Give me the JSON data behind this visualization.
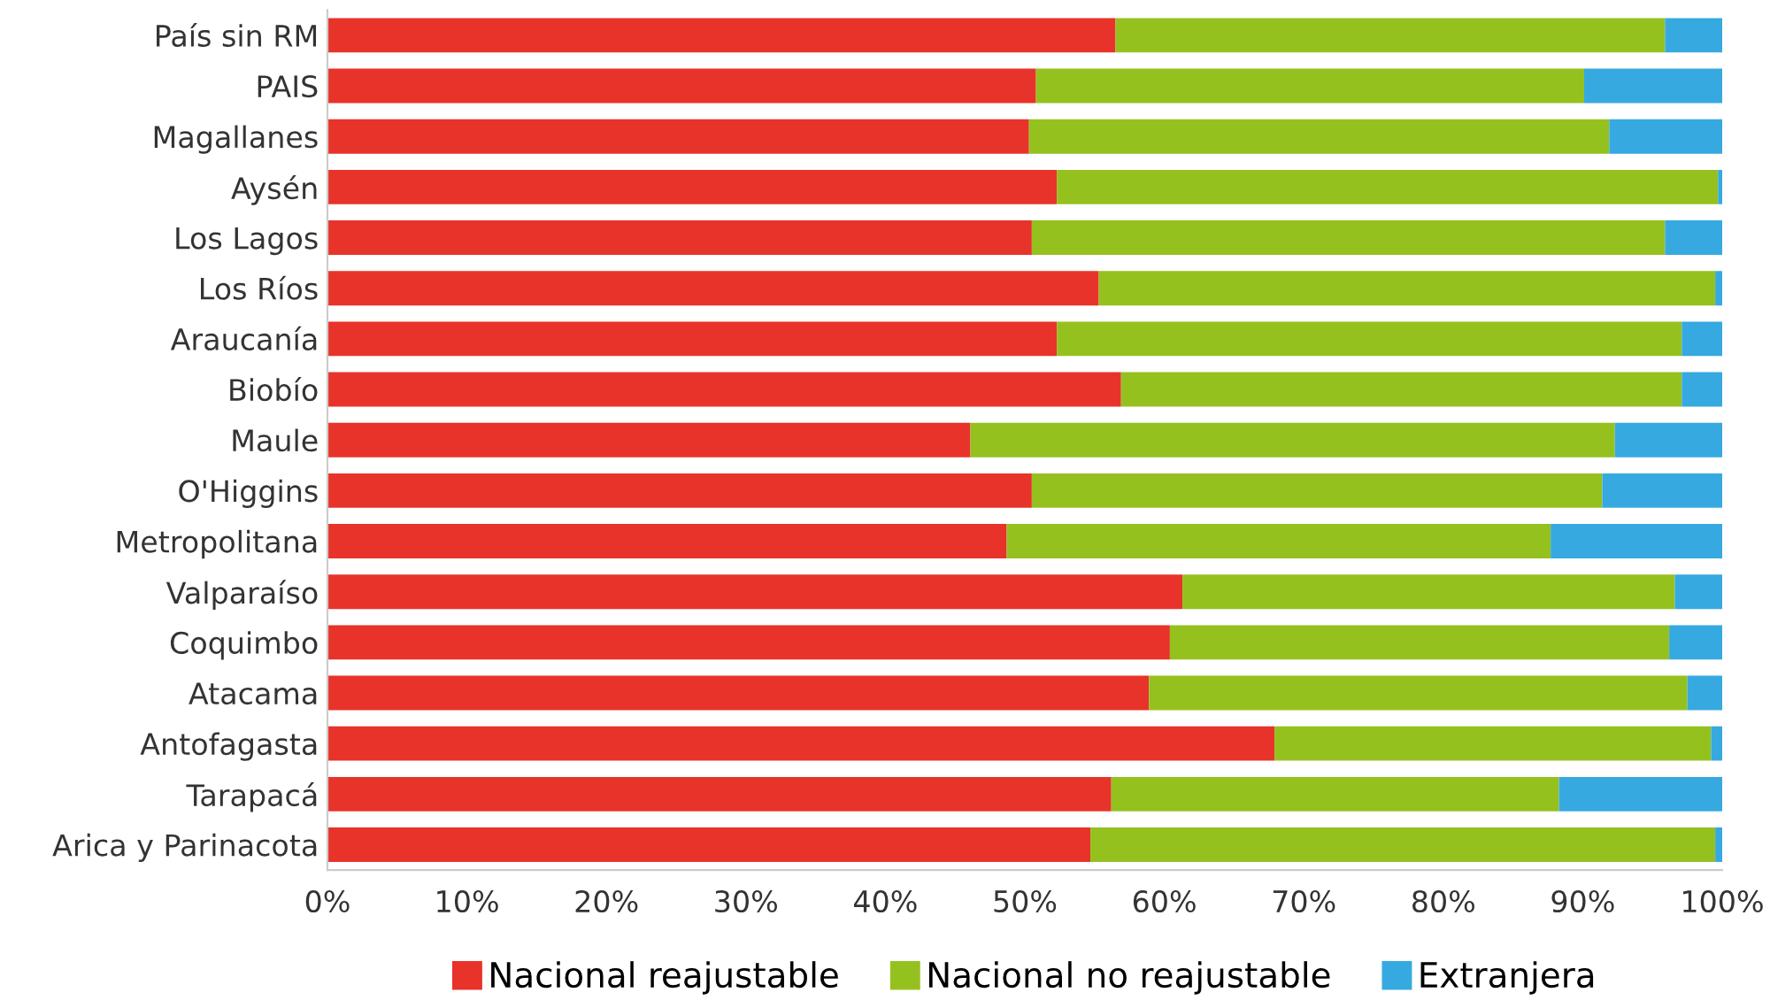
{
  "chart_data": {
    "type": "bar",
    "orientation": "horizontal",
    "stacked": true,
    "categories": [
      "País sin RM",
      "PAIS",
      "Magallanes",
      "Aysén",
      "Los Lagos",
      "Los Ríos",
      "Araucanía",
      "Biobío",
      "Maule",
      "O'Higgins",
      "Metropolitana",
      "Valparaíso",
      "Coquimbo",
      "Atacama",
      "Antofagasta",
      "Tarapacá",
      "Arica y Parinacota"
    ],
    "series": [
      {
        "name": "Nacional reajustable",
        "color": "#e8332a",
        "values": [
          56.5,
          50.8,
          50.3,
          52.3,
          50.5,
          55.3,
          52.3,
          56.9,
          46.1,
          50.5,
          48.7,
          61.3,
          60.4,
          58.9,
          67.9,
          56.2,
          54.7
        ]
      },
      {
        "name": "Nacional no reajustable",
        "color": "#95c11f",
        "values": [
          39.4,
          39.3,
          41.6,
          47.4,
          45.4,
          44.2,
          44.8,
          40.2,
          46.2,
          40.9,
          39.0,
          35.3,
          35.8,
          38.6,
          31.3,
          32.1,
          44.8
        ]
      },
      {
        "name": "Extranjera",
        "color": "#36a9e1",
        "values": [
          4.1,
          9.9,
          8.1,
          0.3,
          4.1,
          0.5,
          2.9,
          2.9,
          7.7,
          8.6,
          12.3,
          3.4,
          3.8,
          2.5,
          0.8,
          11.7,
          0.5
        ]
      }
    ],
    "xlim": [
      0,
      100
    ],
    "xticks": [
      {
        "value": 0,
        "label": "0%"
      },
      {
        "value": 10,
        "label": "10%"
      },
      {
        "value": 20,
        "label": "20%"
      },
      {
        "value": 30,
        "label": "30%"
      },
      {
        "value": 40,
        "label": "40%"
      },
      {
        "value": 50,
        "label": "50%"
      },
      {
        "value": 60,
        "label": "60%"
      },
      {
        "value": 70,
        "label": "70%"
      },
      {
        "value": 80,
        "label": "80%"
      },
      {
        "value": 90,
        "label": "90%"
      },
      {
        "value": 100,
        "label": "100%"
      }
    ],
    "grid": false,
    "legend": "bottom"
  }
}
